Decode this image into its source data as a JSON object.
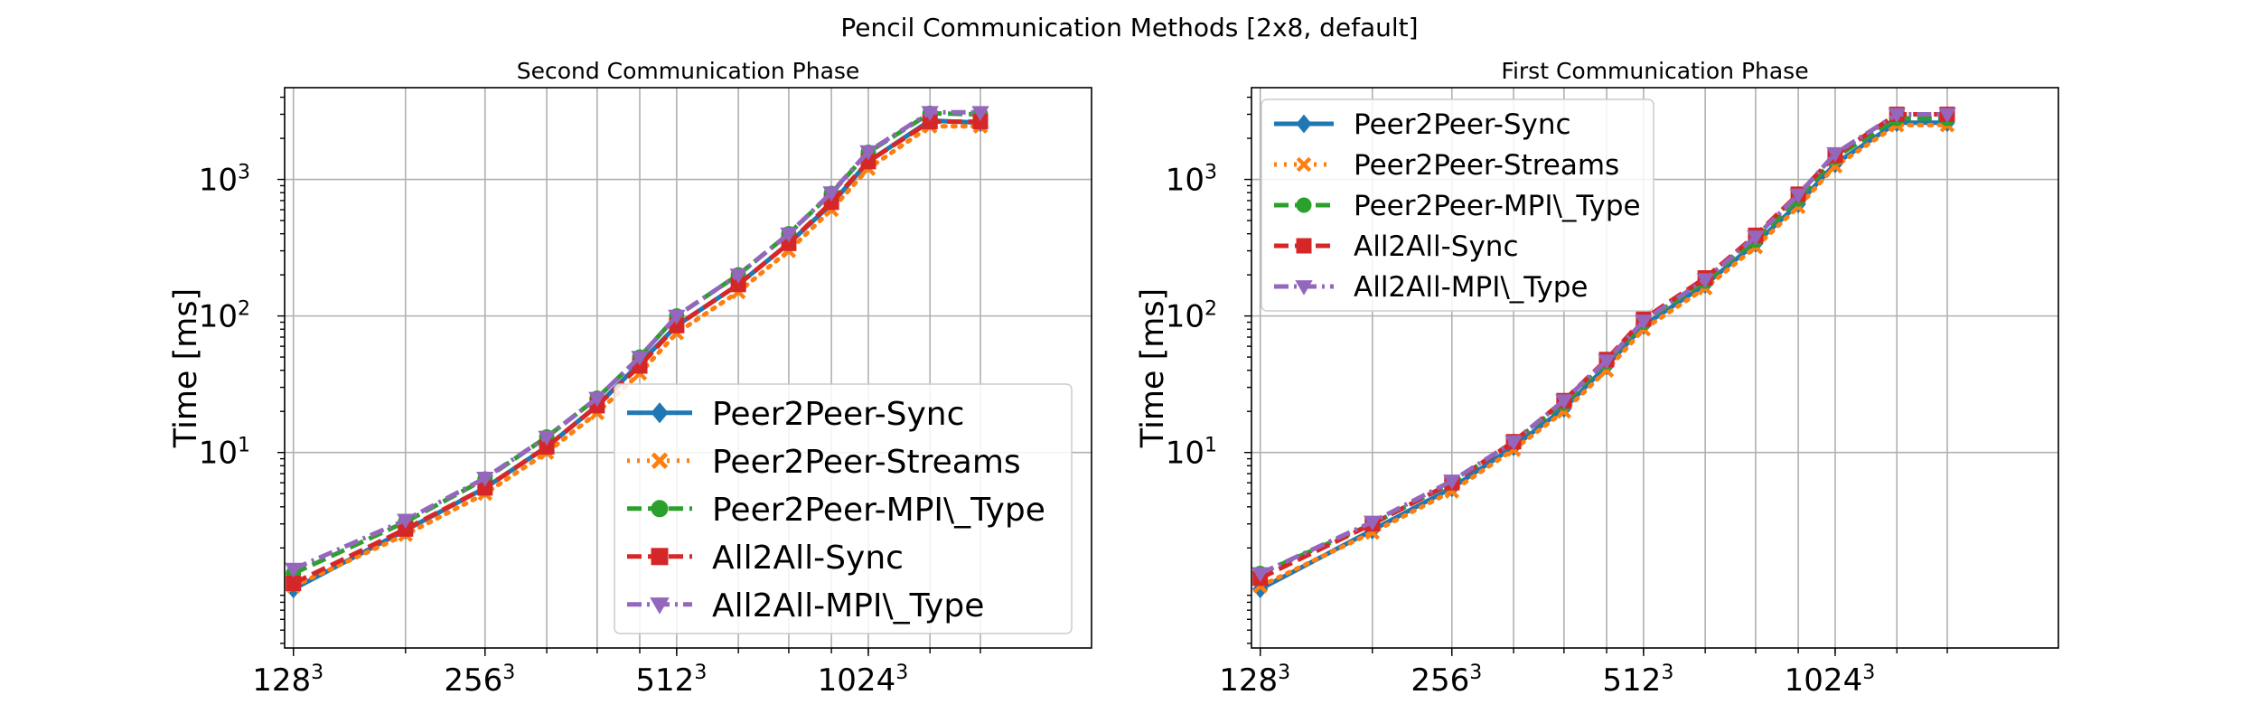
{
  "figure": {
    "suptitle": "Pencil Communication Methods [2x8, default]"
  },
  "chart_data": [
    {
      "type": "line",
      "title": "Second Communication Phase",
      "xlabel": "",
      "ylabel": "Time [ms]",
      "yscale": "log",
      "ylim": [
        0.37,
        4700
      ],
      "xlim": [
        124,
        2296
      ],
      "x": [
        128,
        192,
        256,
        320,
        384,
        448,
        512,
        640,
        768,
        896,
        1024,
        1280,
        1536
      ],
      "xticks": [
        128,
        256,
        512,
        1024
      ],
      "xtick_labels": [
        {
          "base": "128",
          "exp": "3"
        },
        {
          "base": "256",
          "exp": "3"
        },
        {
          "base": "512",
          "exp": "3"
        },
        {
          "base": "1024",
          "exp": "3"
        }
      ],
      "yticks": [
        {
          "value": 10,
          "base": "10",
          "exp": "1"
        },
        {
          "value": 100,
          "base": "10",
          "exp": "2"
        },
        {
          "value": 1000,
          "base": "10",
          "exp": "3"
        }
      ],
      "grid": true,
      "legend": {
        "placement": "lower-right",
        "size": "large"
      },
      "series": [
        {
          "name": "Peer2Peer-Sync",
          "color": "#1f77b4",
          "linestyle": "solid",
          "marker": "diamond",
          "values": [
            1.0,
            2.7,
            5.5,
            11,
            22,
            45,
            85,
            170,
            340,
            660,
            1350,
            2700,
            2600
          ]
        },
        {
          "name": "Peer2Peer-Streams",
          "color": "#ff7f0e",
          "linestyle": "dotted",
          "marker": "x",
          "values": [
            1.05,
            2.5,
            5.0,
            10,
            19.5,
            38,
            75,
            150,
            300,
            600,
            1200,
            2450,
            2450
          ]
        },
        {
          "name": "Peer2Peer-MPI\\_Type",
          "color": "#2ca02c",
          "linestyle": "dashed",
          "marker": "circle",
          "values": [
            1.3,
            3.1,
            6.4,
            13,
            25,
            50,
            100,
            200,
            400,
            790,
            1580,
            3050,
            3000
          ]
        },
        {
          "name": "All2All-Sync",
          "color": "#d62728",
          "linestyle": "dashed",
          "marker": "square",
          "values": [
            1.1,
            2.75,
            5.5,
            11,
            22,
            43,
            85,
            170,
            340,
            680,
            1350,
            2650,
            2650
          ]
        },
        {
          "name": "All2All-MPI\\_Type",
          "color": "#9467bd",
          "linestyle": "dashdot",
          "marker": "triangle-down",
          "values": [
            1.4,
            3.2,
            6.5,
            13,
            25,
            50,
            100,
            200,
            400,
            800,
            1600,
            3100,
            3100
          ]
        }
      ]
    },
    {
      "type": "line",
      "title": "First Communication Phase",
      "xlabel": "",
      "ylabel": "Time [ms]",
      "yscale": "log",
      "ylim": [
        0.37,
        4700
      ],
      "xlim": [
        124,
        2296
      ],
      "x": [
        128,
        192,
        256,
        320,
        384,
        448,
        512,
        640,
        768,
        896,
        1024,
        1280,
        1536
      ],
      "xticks": [
        128,
        256,
        512,
        1024
      ],
      "xtick_labels": [
        {
          "base": "128",
          "exp": "3"
        },
        {
          "base": "256",
          "exp": "3"
        },
        {
          "base": "512",
          "exp": "3"
        },
        {
          "base": "1024",
          "exp": "3"
        }
      ],
      "yticks": [
        {
          "value": 10,
          "base": "10",
          "exp": "1"
        },
        {
          "value": 100,
          "base": "10",
          "exp": "2"
        },
        {
          "value": 1000,
          "base": "10",
          "exp": "3"
        }
      ],
      "grid": true,
      "legend": {
        "placement": "upper-left",
        "size": "medium"
      },
      "series": [
        {
          "name": "Peer2Peer-Sync",
          "color": "#1f77b4",
          "linestyle": "solid",
          "marker": "diamond",
          "values": [
            1.0,
            2.7,
            5.5,
            11,
            21,
            43,
            85,
            170,
            340,
            660,
            1300,
            2600,
            2600
          ]
        },
        {
          "name": "Peer2Peer-Streams",
          "color": "#ff7f0e",
          "linestyle": "dotted",
          "marker": "x",
          "values": [
            1.05,
            2.6,
            5.2,
            10.5,
            20,
            40,
            80,
            160,
            320,
            630,
            1250,
            2500,
            2500
          ]
        },
        {
          "name": "Peer2Peer-MPI\\_Type",
          "color": "#2ca02c",
          "linestyle": "dashed",
          "marker": "circle",
          "values": [
            1.3,
            3.0,
            6.0,
            12,
            23,
            46,
            90,
            180,
            360,
            720,
            1450,
            2800,
            2800
          ]
        },
        {
          "name": "All2All-Sync",
          "color": "#d62728",
          "linestyle": "dashed",
          "marker": "square",
          "values": [
            1.2,
            3.0,
            6.0,
            12,
            24,
            48,
            95,
            190,
            390,
            780,
            1500,
            3000,
            3000
          ]
        },
        {
          "name": "All2All-MPI\\_Type",
          "color": "#9467bd",
          "linestyle": "dashdot",
          "marker": "triangle-down",
          "values": [
            1.3,
            3.1,
            6.2,
            12,
            24,
            47,
            92,
            185,
            380,
            770,
            1550,
            3000,
            3000
          ]
        }
      ]
    }
  ]
}
